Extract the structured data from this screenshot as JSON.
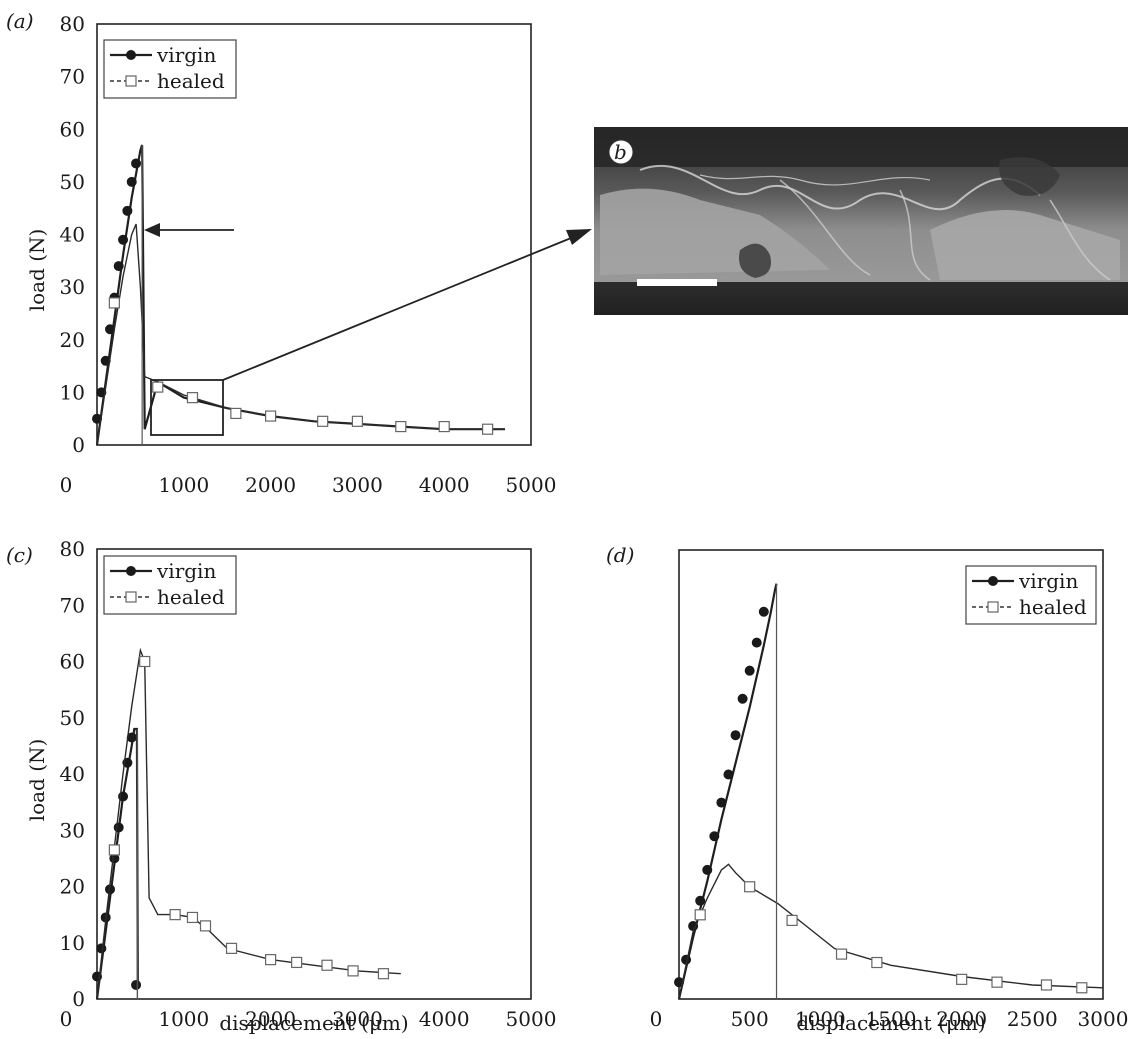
{
  "chart_data": [
    {
      "panel": "a",
      "type": "line",
      "panel_label": "(a)",
      "xlabel": "",
      "ylabel": "load (N)",
      "xlim": [
        0,
        5000
      ],
      "ylim": [
        0,
        80
      ],
      "xticks": [
        "0",
        "1000",
        "2000",
        "3000",
        "4000",
        "5000"
      ],
      "yticks": [
        "0",
        "10",
        "20",
        "30",
        "40",
        "50",
        "60",
        "70",
        "80"
      ],
      "legend": {
        "placement": "top-left"
      },
      "series": [
        {
          "name": "virgin",
          "style": "solid",
          "marker": "filled-circle",
          "x": [
            0,
            100,
            200,
            300,
            400,
            500,
            520,
            550,
            700,
            1000,
            1500,
            2000,
            2500,
            3000,
            3500,
            4000,
            4500,
            4700
          ],
          "y": [
            0,
            12,
            24,
            36,
            47,
            56,
            57,
            3,
            12,
            9,
            7,
            5.5,
            4.5,
            4,
            3.5,
            3,
            3,
            3
          ],
          "markers": [
            [
              0,
              5
            ],
            [
              50,
              10
            ],
            [
              100,
              16
            ],
            [
              150,
              22
            ],
            [
              200,
              28
            ],
            [
              250,
              34
            ],
            [
              300,
              39
            ],
            [
              350,
              44.5
            ],
            [
              400,
              50
            ],
            [
              450,
              53.5
            ]
          ]
        },
        {
          "name": "healed",
          "style": "dashed",
          "marker": "open-square",
          "x": [
            0,
            100,
            200,
            300,
            400,
            450,
            500,
            550,
            700,
            1000,
            1500,
            2000,
            2500,
            3000,
            3500,
            4000,
            4500,
            4700
          ],
          "y": [
            0,
            11,
            22,
            32,
            40,
            42,
            30,
            13,
            12,
            9.5,
            7,
            5.5,
            4.5,
            4,
            3.5,
            3,
            3,
            3
          ],
          "markers": [
            [
              200,
              27
            ],
            [
              700,
              11
            ],
            [
              1100,
              9
            ],
            [
              1600,
              6
            ],
            [
              2000,
              5.5
            ],
            [
              2600,
              4.5
            ],
            [
              3000,
              4.5
            ],
            [
              3500,
              3.5
            ],
            [
              4000,
              3.5
            ],
            [
              4500,
              3
            ]
          ]
        }
      ],
      "annotations": [
        "arrow pointing left at the healed peak",
        "boxed region 700–1400 µm enlarged in (b)"
      ]
    },
    {
      "panel": "b",
      "type": "image",
      "panel_label": "b",
      "description_hidden": true
    },
    {
      "panel": "c",
      "type": "line",
      "panel_label": "(c)",
      "xlabel": "displacement (μm)",
      "ylabel": "load (N)",
      "xlim": [
        0,
        5000
      ],
      "ylim": [
        0,
        80
      ],
      "xticks": [
        "0",
        "1000",
        "2000",
        "3000",
        "4000",
        "5000"
      ],
      "yticks": [
        "0",
        "10",
        "20",
        "30",
        "40",
        "50",
        "60",
        "70",
        "80"
      ],
      "legend": {
        "placement": "top-left"
      },
      "series": [
        {
          "name": "virgin",
          "style": "solid",
          "marker": "filled-circle",
          "x": [
            0,
            100,
            200,
            300,
            400,
            430,
            460,
            470
          ],
          "y": [
            0,
            12,
            24,
            36,
            45,
            48,
            48,
            2.5
          ],
          "markers": [
            [
              0,
              4
            ],
            [
              50,
              9
            ],
            [
              100,
              14.5
            ],
            [
              150,
              19.5
            ],
            [
              200,
              25
            ],
            [
              250,
              30.5
            ],
            [
              300,
              36
            ],
            [
              350,
              42
            ],
            [
              400,
              46.5
            ],
            [
              450,
              2.5
            ]
          ]
        },
        {
          "name": "healed",
          "style": "dashed",
          "marker": "open-square",
          "x": [
            0,
            100,
            200,
            300,
            400,
            500,
            550,
            600,
            700,
            900,
            1100,
            1300,
            1500,
            2000,
            2500,
            3000,
            3500
          ],
          "y": [
            0,
            14,
            27,
            40,
            52,
            62,
            60,
            18,
            15,
            15,
            14.5,
            12,
            9,
            7,
            6,
            5,
            4.5
          ],
          "markers": [
            [
              200,
              26.5
            ],
            [
              550,
              60
            ],
            [
              900,
              15
            ],
            [
              1100,
              14.5
            ],
            [
              1250,
              13
            ],
            [
              1550,
              9
            ],
            [
              2000,
              7
            ],
            [
              2300,
              6.5
            ],
            [
              2650,
              6
            ],
            [
              2950,
              5
            ],
            [
              3300,
              4.5
            ]
          ]
        }
      ]
    },
    {
      "panel": "d",
      "type": "line",
      "panel_label": "(d)",
      "xlabel": "displacement (μm)",
      "ylabel": "",
      "xlim": [
        0,
        3000
      ],
      "ylim": [
        0,
        80
      ],
      "xticks": [
        "0",
        "500",
        "1000",
        "1500",
        "2000",
        "2500",
        "3000"
      ],
      "yticks": [],
      "legend": {
        "placement": "top-right"
      },
      "series": [
        {
          "name": "virgin",
          "style": "solid",
          "marker": "filled-circle",
          "x": [
            0,
            100,
            200,
            300,
            400,
            500,
            600,
            650,
            680,
            690
          ],
          "y": [
            0,
            11,
            21,
            32,
            42,
            52,
            63,
            69,
            73,
            74
          ],
          "markers": [
            [
              0,
              3
            ],
            [
              50,
              7
            ],
            [
              100,
              13
            ],
            [
              150,
              17.5
            ],
            [
              200,
              23
            ],
            [
              250,
              29
            ],
            [
              300,
              35
            ],
            [
              350,
              40
            ],
            [
              400,
              47
            ],
            [
              450,
              53.5
            ],
            [
              500,
              58.5
            ],
            [
              550,
              63.5
            ],
            [
              600,
              69
            ]
          ]
        },
        {
          "name": "healed",
          "style": "dashed",
          "marker": "open-square",
          "x": [
            0,
            100,
            200,
            300,
            350,
            400,
            500,
            700,
            900,
            1100,
            1500,
            2000,
            2500,
            3000
          ],
          "y": [
            0,
            12,
            18,
            23,
            24,
            22.5,
            20,
            17,
            13,
            9,
            6,
            4,
            2.5,
            2
          ],
          "markers": [
            [
              150,
              15
            ],
            [
              500,
              20
            ],
            [
              800,
              14
            ],
            [
              1150,
              8
            ],
            [
              1400,
              6.5
            ],
            [
              2000,
              3.5
            ],
            [
              2250,
              3
            ],
            [
              2600,
              2.5
            ],
            [
              2850,
              2
            ]
          ]
        }
      ]
    }
  ]
}
